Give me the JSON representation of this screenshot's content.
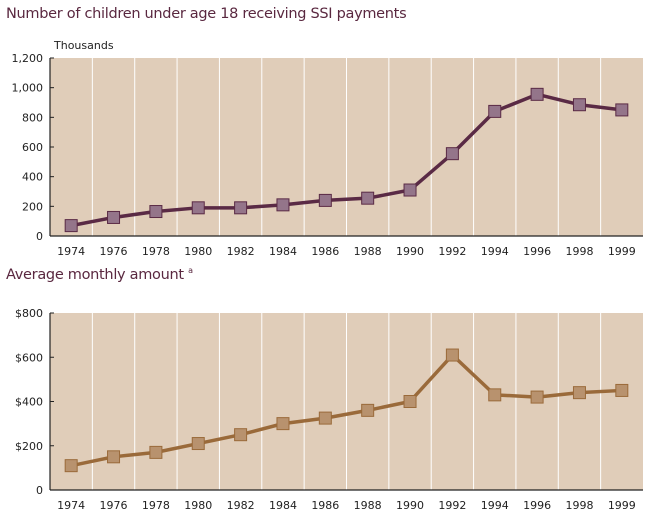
{
  "chart_data": [
    {
      "type": "line",
      "title": "Number of children under age 18 receiving SSI payments",
      "ylabel": "Thousands",
      "categories": [
        "1974",
        "1976",
        "1978",
        "1980",
        "1982",
        "1984",
        "1986",
        "1988",
        "1990",
        "1992",
        "1994",
        "1996",
        "1998",
        "1999"
      ],
      "values": [
        70,
        125,
        165,
        190,
        190,
        210,
        240,
        255,
        310,
        555,
        840,
        955,
        885,
        850
      ],
      "ylim": [
        0,
        1200
      ],
      "yticks": [
        0,
        200,
        400,
        600,
        800,
        1000,
        1200
      ],
      "ytick_labels": [
        "0",
        "200",
        "400",
        "600",
        "800",
        "1,000",
        "1,200"
      ],
      "grid": "vertical",
      "colors": {
        "background": "#e0cdb9",
        "line": "#5a2a45",
        "marker": "#94758a"
      }
    },
    {
      "type": "line",
      "title": "Average monthly amount",
      "title_note": "a",
      "categories": [
        "1974",
        "1976",
        "1978",
        "1980",
        "1982",
        "1984",
        "1986",
        "1988",
        "1990",
        "1992",
        "1994",
        "1996",
        "1998",
        "1999"
      ],
      "values": [
        110,
        150,
        170,
        210,
        250,
        300,
        325,
        360,
        400,
        610,
        430,
        420,
        440,
        450
      ],
      "ylim": [
        0,
        800
      ],
      "yticks": [
        0,
        200,
        400,
        600,
        800
      ],
      "ytick_labels": [
        "0",
        "$200",
        "$400",
        "$600",
        "$800"
      ],
      "grid": "vertical",
      "colors": {
        "background": "#e0cdb9",
        "line": "#9a6a3a",
        "marker": "#b8926e"
      }
    }
  ]
}
